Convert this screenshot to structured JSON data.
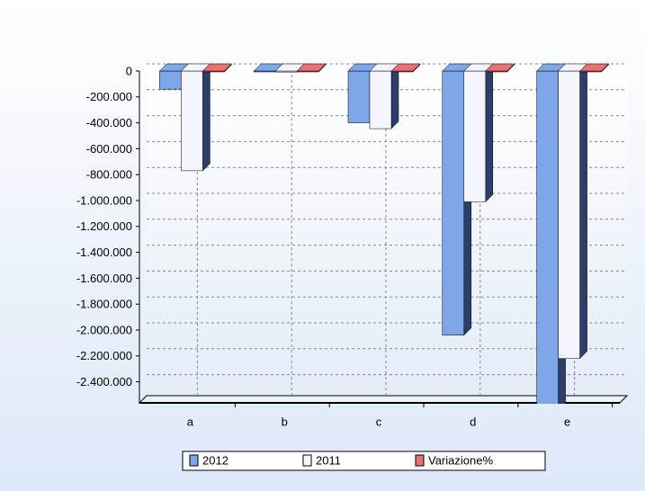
{
  "chart_data": {
    "type": "bar3d",
    "categories": [
      "a",
      "b",
      "c",
      "d",
      "e"
    ],
    "series": [
      {
        "name": "2012",
        "color": "#7ea6e8",
        "values": [
          -140000,
          -5000,
          -400000,
          -2040000,
          -2700000
        ]
      },
      {
        "name": "2011",
        "color": "#f2f5fc",
        "values": [
          -770000,
          -8000,
          -445000,
          -1010000,
          -2220000
        ]
      },
      {
        "name": "Variazione%",
        "color": "#e87070",
        "values": [
          -5,
          -5,
          -5,
          -5,
          -5
        ]
      }
    ],
    "ylim": [
      -2500000,
      0
    ],
    "yticks": [
      0,
      {
        "value": -200000,
        "label": "-200.000"
      },
      {
        "value": -400000,
        "label": "-400.000"
      },
      {
        "value": -600000,
        "label": "-600.000"
      },
      {
        "value": -800000,
        "label": "-800.000"
      },
      {
        "value": -1000000,
        "label": "-1.000.000"
      },
      {
        "value": -1200000,
        "label": "-1.200.000"
      },
      {
        "value": -1400000,
        "label": "-1.400.000"
      },
      {
        "value": -1600000,
        "label": "-1.600.000"
      },
      {
        "value": -1800000,
        "label": "-1.800.000"
      },
      {
        "value": -2000000,
        "label": "-2.000.000"
      },
      {
        "value": -2200000,
        "label": "-2.200.000"
      },
      {
        "value": -2400000,
        "label": "-2.400.000"
      }
    ],
    "grid": true,
    "legend": "bottom"
  }
}
